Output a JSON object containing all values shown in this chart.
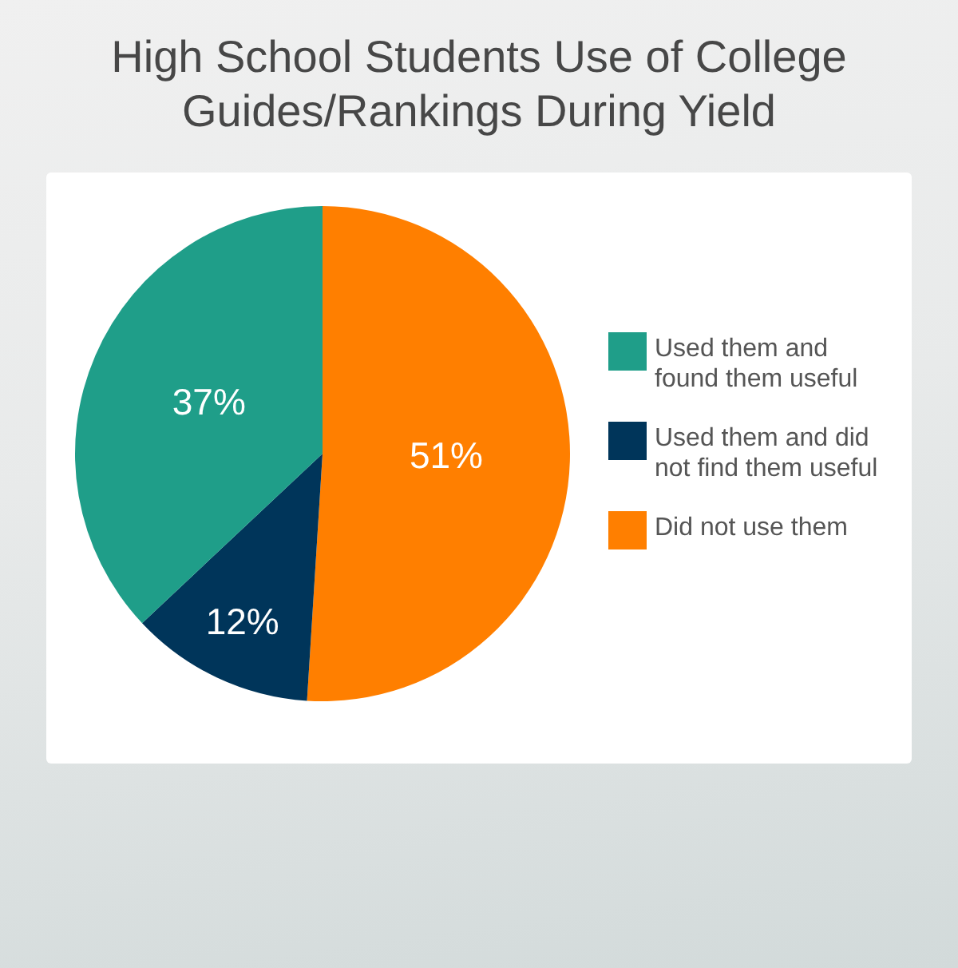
{
  "chart_data": {
    "type": "pie",
    "title": "High School Students Use of College Guides/Rankings During Yield",
    "categories": [
      "Used them and found them useful",
      "Used them and did not find them useful",
      "Did not use them"
    ],
    "values": [
      37,
      12,
      51
    ],
    "colors": [
      "#1f9e89",
      "#00355a",
      "#ff7f00"
    ],
    "value_labels": [
      "37%",
      "12%",
      "51%"
    ],
    "legend": "right"
  }
}
